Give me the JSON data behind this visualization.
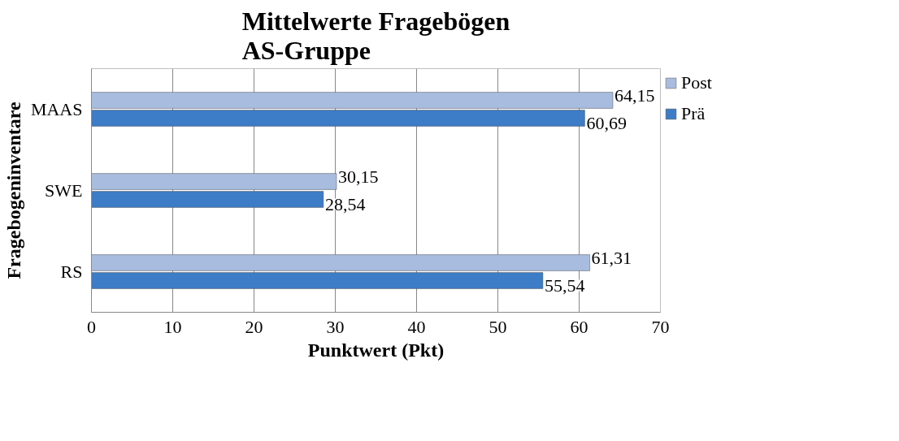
{
  "chart_data": {
    "type": "bar",
    "orientation": "horizontal",
    "title": "Mittelwerte Fragebögen\nAS-Gruppe",
    "xlabel": "Punktwert (Pkt)",
    "ylabel": "Fragebogeninventare",
    "categories": [
      "MAAS",
      "SWE",
      "RS"
    ],
    "series": [
      {
        "name": "Post",
        "color": "#a8bce0",
        "values": [
          64.15,
          30.15,
          61.31
        ],
        "value_labels": [
          "64,15",
          "30,15",
          "61,31"
        ]
      },
      {
        "name": "Prä",
        "color": "#3d7cc6",
        "values": [
          60.69,
          28.54,
          55.54
        ],
        "value_labels": [
          "60,69",
          "28,54",
          "55,54"
        ]
      }
    ],
    "xlim": [
      0,
      70
    ],
    "xticks": [
      0,
      10,
      20,
      30,
      40,
      50,
      60,
      70
    ],
    "grid": "x",
    "legend": "right"
  }
}
